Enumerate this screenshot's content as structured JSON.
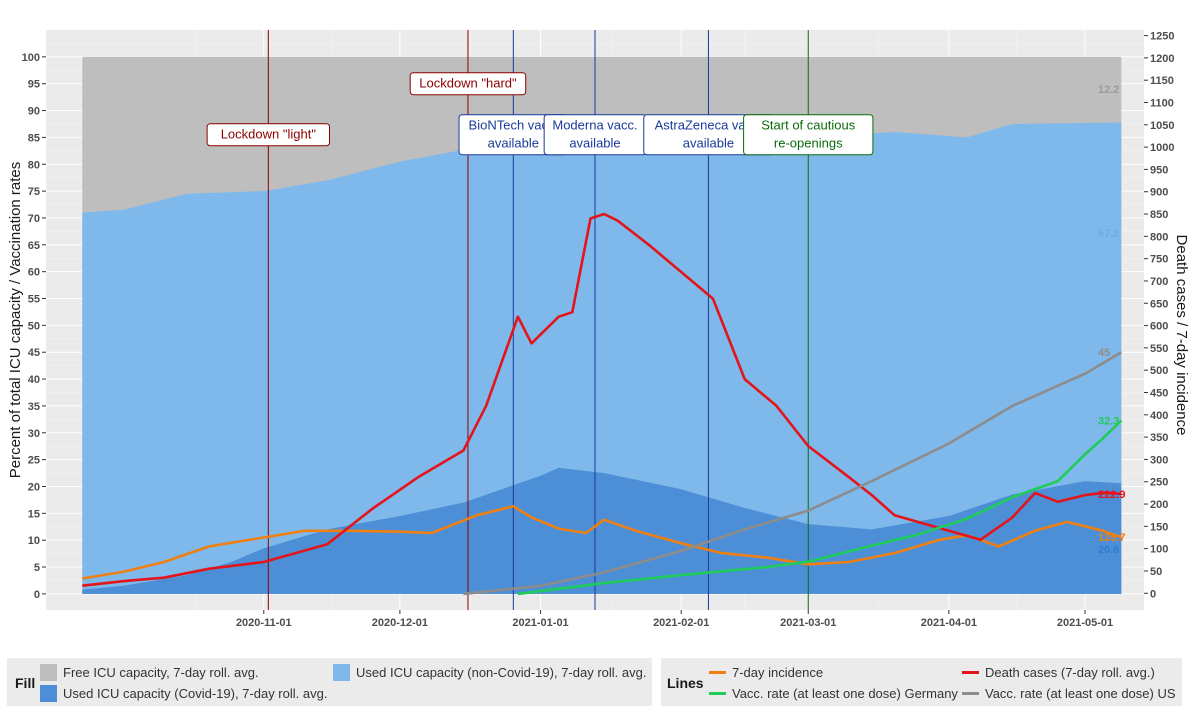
{
  "chart_data": {
    "type": "area",
    "ylabel_left": "Percent of total ICU capacity / Vaccination rates",
    "ylabel_right": "Death cases / 7-day incidence",
    "ylim_left": [
      -3,
      105
    ],
    "ylim_right": [
      -37.5,
      1262.5
    ],
    "left_ticks": [
      0,
      5,
      10,
      15,
      20,
      25,
      30,
      35,
      40,
      45,
      50,
      55,
      60,
      65,
      70,
      75,
      80,
      85,
      90,
      95,
      100
    ],
    "right_ticks": [
      0,
      50,
      100,
      150,
      200,
      250,
      300,
      350,
      400,
      450,
      500,
      550,
      600,
      650,
      700,
      750,
      800,
      850,
      900,
      950,
      1000,
      1050,
      1100,
      1150,
      1200,
      1250
    ],
    "x_range": [
      "2020-09-14",
      "2021-05-14"
    ],
    "x_ticks": [
      "2020-11-01",
      "2020-12-01",
      "2021-01-01",
      "2021-02-01",
      "2021-03-01",
      "2021-04-01",
      "2021-05-01"
    ],
    "grid": true,
    "areas": [
      {
        "name": "Free ICU capacity, 7-day roll. avg.",
        "color": "#bebebe",
        "value_note": "fills to 100",
        "end_label": "12.2"
      },
      {
        "name": "Used ICU capacity (non-Covid-19), 7-day roll. avg.",
        "color": "#7fb9eb",
        "points": [
          [
            "2020-09-22",
            71
          ],
          [
            "2020-10-01",
            71.5
          ],
          [
            "2020-10-15",
            74.5
          ],
          [
            "2020-11-01",
            75
          ],
          [
            "2020-11-15",
            77
          ],
          [
            "2020-12-01",
            80.5
          ],
          [
            "2020-12-20",
            83.5
          ],
          [
            "2021-01-01",
            84.5
          ],
          [
            "2021-01-15",
            84.5
          ],
          [
            "2021-02-01",
            85
          ],
          [
            "2021-03-01",
            85
          ],
          [
            "2021-03-20",
            86
          ],
          [
            "2021-04-05",
            85
          ],
          [
            "2021-04-15",
            87.5
          ],
          [
            "2021-05-09",
            87.8
          ]
        ],
        "end_label": "67.2"
      },
      {
        "name": "Used ICU capacity (Covid-19), 7-day roll. avg.",
        "color": "#4d8fd6",
        "points": [
          [
            "2020-09-22",
            0.8
          ],
          [
            "2020-10-01",
            1.5
          ],
          [
            "2020-10-15",
            3.5
          ],
          [
            "2020-10-25",
            6
          ],
          [
            "2020-11-01",
            8.5
          ],
          [
            "2020-11-15",
            12
          ],
          [
            "2020-12-01",
            14.5
          ],
          [
            "2020-12-15",
            17
          ],
          [
            "2021-01-01",
            22
          ],
          [
            "2021-01-05",
            23.5
          ],
          [
            "2021-01-15",
            22.5
          ],
          [
            "2021-02-01",
            19.5
          ],
          [
            "2021-02-15",
            16
          ],
          [
            "2021-03-01",
            13
          ],
          [
            "2021-03-15",
            12
          ],
          [
            "2021-04-01",
            14.5
          ],
          [
            "2021-04-15",
            18.5
          ],
          [
            "2021-05-01",
            21
          ],
          [
            "2021-05-09",
            20.6
          ]
        ],
        "end_label": "20.6"
      }
    ],
    "series": [
      {
        "name": "7-day incidence",
        "axis": "right",
        "color": "#f07f12",
        "end_label": "125.7",
        "points": [
          [
            "2020-09-22",
            33
          ],
          [
            "2020-10-01",
            48
          ],
          [
            "2020-10-10",
            70
          ],
          [
            "2020-10-20",
            105
          ],
          [
            "2020-11-01",
            125
          ],
          [
            "2020-11-10",
            140
          ],
          [
            "2020-11-20",
            140
          ],
          [
            "2020-12-01",
            138
          ],
          [
            "2020-12-08",
            135
          ],
          [
            "2020-12-18",
            175
          ],
          [
            "2020-12-26",
            195
          ],
          [
            "2020-12-30",
            170
          ],
          [
            "2021-01-05",
            145
          ],
          [
            "2021-01-11",
            135
          ],
          [
            "2021-01-15",
            165
          ],
          [
            "2021-01-22",
            140
          ],
          [
            "2021-02-01",
            112
          ],
          [
            "2021-02-10",
            90
          ],
          [
            "2021-02-20",
            80
          ],
          [
            "2021-03-01",
            65
          ],
          [
            "2021-03-10",
            70
          ],
          [
            "2021-03-20",
            90
          ],
          [
            "2021-03-30",
            120
          ],
          [
            "2021-04-05",
            130
          ],
          [
            "2021-04-12",
            105
          ],
          [
            "2021-04-20",
            140
          ],
          [
            "2021-04-27",
            160
          ],
          [
            "2021-05-05",
            140
          ],
          [
            "2021-05-09",
            125.7
          ]
        ]
      },
      {
        "name": "Death cases (7-day roll. avg.)",
        "axis": "right",
        "color": "#e3151b",
        "end_label": "222.9",
        "points": [
          [
            "2020-09-22",
            17
          ],
          [
            "2020-10-01",
            27
          ],
          [
            "2020-10-10",
            35
          ],
          [
            "2020-10-20",
            55
          ],
          [
            "2020-11-01",
            70
          ],
          [
            "2020-11-15",
            110
          ],
          [
            "2020-11-25",
            190
          ],
          [
            "2020-12-05",
            260
          ],
          [
            "2020-12-15",
            320
          ],
          [
            "2020-12-20",
            420
          ],
          [
            "2020-12-27",
            620
          ],
          [
            "2020-12-30",
            560
          ],
          [
            "2021-01-05",
            620
          ],
          [
            "2021-01-08",
            630
          ],
          [
            "2021-01-12",
            840
          ],
          [
            "2021-01-15",
            850
          ],
          [
            "2021-01-18",
            835
          ],
          [
            "2021-01-25",
            780
          ],
          [
            "2021-02-01",
            720
          ],
          [
            "2021-02-08",
            660
          ],
          [
            "2021-02-15",
            480
          ],
          [
            "2021-02-22",
            420
          ],
          [
            "2021-03-01",
            330
          ],
          [
            "2021-03-10",
            260
          ],
          [
            "2021-03-15",
            220
          ],
          [
            "2021-03-20",
            175
          ],
          [
            "2021-04-01",
            140
          ],
          [
            "2021-04-08",
            120
          ],
          [
            "2021-04-15",
            170
          ],
          [
            "2021-04-20",
            225
          ],
          [
            "2021-04-25",
            205
          ],
          [
            "2021-05-01",
            220
          ],
          [
            "2021-05-05",
            225
          ],
          [
            "2021-05-09",
            222.9
          ]
        ]
      },
      {
        "name": "Vacc. rate (at least one dose) Germany",
        "axis": "left",
        "color": "#1fcc5a",
        "end_label": "32.3",
        "points": [
          [
            "2020-12-27",
            0
          ],
          [
            "2021-01-15",
            2
          ],
          [
            "2021-02-01",
            3.5
          ],
          [
            "2021-02-20",
            5
          ],
          [
            "2021-03-01",
            6
          ],
          [
            "2021-03-15",
            9
          ],
          [
            "2021-03-25",
            11
          ],
          [
            "2021-04-05",
            14
          ],
          [
            "2021-04-15",
            18
          ],
          [
            "2021-04-25",
            21
          ],
          [
            "2021-05-01",
            26
          ],
          [
            "2021-05-05",
            29
          ],
          [
            "2021-05-09",
            32.3
          ]
        ]
      },
      {
        "name": "Vacc. rate (at least one dose) US",
        "axis": "left",
        "color": "#8c8c8c",
        "end_label": "45",
        "points": [
          [
            "2020-12-15",
            0
          ],
          [
            "2021-01-01",
            1.5
          ],
          [
            "2021-01-15",
            4
          ],
          [
            "2021-02-01",
            8
          ],
          [
            "2021-02-15",
            12
          ],
          [
            "2021-03-01",
            15.5
          ],
          [
            "2021-03-15",
            21
          ],
          [
            "2021-04-01",
            28
          ],
          [
            "2021-04-15",
            35
          ],
          [
            "2021-05-01",
            41
          ],
          [
            "2021-05-09",
            45
          ]
        ]
      }
    ],
    "events": [
      {
        "date": "2020-11-02",
        "label": "Lockdown \"light\"",
        "color": "#8b0000",
        "label_level": 85.5
      },
      {
        "date": "2020-12-16",
        "label": "Lockdown \"hard\"",
        "color": "#8b0000",
        "label_level": 95
      },
      {
        "date": "2020-12-26",
        "label": "BioNTech vacc.\navailable",
        "color": "#1a3a99",
        "label_level": 85.5
      },
      {
        "date": "2021-01-13",
        "label": "Moderna vacc.\navailable",
        "color": "#1a3a99",
        "label_level": 85.5
      },
      {
        "date": "2021-02-07",
        "label": "AstraZeneca vacc.\navailable",
        "color": "#1a3a99",
        "label_level": 85.5
      },
      {
        "date": "2021-03-01",
        "label": "Start of cautious\nre-openings",
        "color": "#0b6b0b",
        "label_level": 85.5
      }
    ]
  },
  "legend": {
    "fill_title": "Fill",
    "fill_items": [
      {
        "label": "Free ICU capacity, 7-day roll. avg.",
        "color": "#bebebe"
      },
      {
        "label": "Used ICU capacity (non-Covid-19), 7-day roll. avg.",
        "color": "#7fb9eb"
      },
      {
        "label": "Used ICU capacity (Covid-19), 7-day roll. avg.",
        "color": "#4d8fd6"
      }
    ],
    "lines_title": "Lines",
    "line_items": [
      {
        "label": "7-day incidence",
        "color": "#f07f12"
      },
      {
        "label": "Death cases (7-day roll. avg.)",
        "color": "#e3151b"
      },
      {
        "label": "Vacc. rate (at least one dose) Germany",
        "color": "#1fcc5a"
      },
      {
        "label": "Vacc. rate (at least one dose) US",
        "color": "#8c8c8c"
      }
    ]
  }
}
